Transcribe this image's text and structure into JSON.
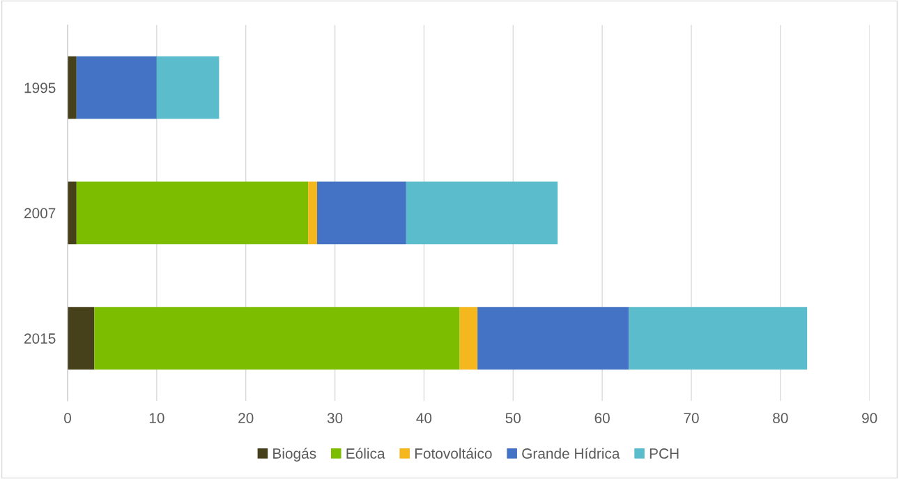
{
  "chart_data": {
    "type": "bar",
    "orientation": "horizontal",
    "stacked": true,
    "categories": [
      "1995",
      "2007",
      "2015"
    ],
    "series": [
      {
        "name": "Biogás",
        "color": "#46401b",
        "values": [
          1,
          1,
          3
        ]
      },
      {
        "name": "Eólica",
        "color": "#7cbd00",
        "values": [
          null,
          26,
          41
        ]
      },
      {
        "name": "Fotovoltáico",
        "color": "#f5b71e",
        "values": [
          null,
          1,
          2
        ]
      },
      {
        "name": "Grande Hídrica",
        "color": "#4472c4",
        "values": [
          9,
          10,
          17
        ]
      },
      {
        "name": "PCH",
        "color": "#5bbdcc",
        "values": [
          7,
          17,
          20
        ]
      }
    ],
    "xlim": [
      0,
      90
    ],
    "xticks": [
      0,
      10,
      20,
      30,
      40,
      50,
      60,
      70,
      80,
      90
    ],
    "grid": "x",
    "legend": "bottom"
  }
}
